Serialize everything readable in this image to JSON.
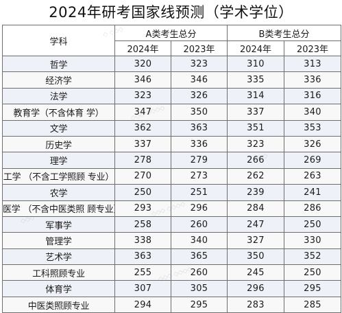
{
  "title": "2024年研考国家线预测（学术学位）",
  "headers": {
    "subject": "学科",
    "groupA": "A类考生总分",
    "groupB": "B类考生总分",
    "yearA1": "2024年",
    "yearA2": "2023年",
    "yearB1": "2024年",
    "yearB2": "2023年"
  },
  "rows": [
    {
      "subject": "哲学",
      "a2024": "320",
      "a2023": "323",
      "b2024": "310",
      "b2023": "313"
    },
    {
      "subject": "经济学",
      "a2024": "346",
      "a2023": "346",
      "b2024": "335",
      "b2023": "336"
    },
    {
      "subject": "法学",
      "a2024": "323",
      "a2023": "326",
      "b2024": "314",
      "b2023": "316"
    },
    {
      "subject": "教育学（不含体育 学）",
      "a2024": "347",
      "a2023": "350",
      "b2024": "337",
      "b2023": "340"
    },
    {
      "subject": "文学",
      "a2024": "362",
      "a2023": "363",
      "b2024": "351",
      "b2023": "353"
    },
    {
      "subject": "历史学",
      "a2024": "337",
      "a2023": "336",
      "b2024": "323",
      "b2023": "326"
    },
    {
      "subject": "理学",
      "a2024": "278",
      "a2023": "279",
      "b2024": "266",
      "b2023": "269"
    },
    {
      "subject": "工学 （不含工学照顾 专业）",
      "a2024": "270",
      "a2023": "273",
      "b2024": "262",
      "b2023": "263"
    },
    {
      "subject": "农学",
      "a2024": "250",
      "a2023": "251",
      "b2024": "239",
      "b2023": "241"
    },
    {
      "subject": "医学 （不含中医类照 顾专业）",
      "a2024": "293",
      "a2023": "296",
      "b2024": "284",
      "b2023": "286"
    },
    {
      "subject": "军事学",
      "a2024": "258",
      "a2023": "260",
      "b2024": "247",
      "b2023": "250"
    },
    {
      "subject": "管理学",
      "a2024": "338",
      "a2023": "340",
      "b2024": "327",
      "b2023": "330"
    },
    {
      "subject": "艺术学",
      "a2024": "363",
      "a2023": "365",
      "b2024": "350",
      "b2023": "352"
    },
    {
      "subject": "工科照顾专业",
      "a2024": "255",
      "a2023": "260",
      "b2024": "245",
      "b2023": "250"
    },
    {
      "subject": "体育学",
      "a2024": "307",
      "a2023": "305",
      "b2024": "296",
      "b2023": "295"
    },
    {
      "subject": "中医类照顾专业",
      "a2024": "294",
      "a2023": "295",
      "b2024": "283",
      "b2023": "285"
    }
  ]
}
